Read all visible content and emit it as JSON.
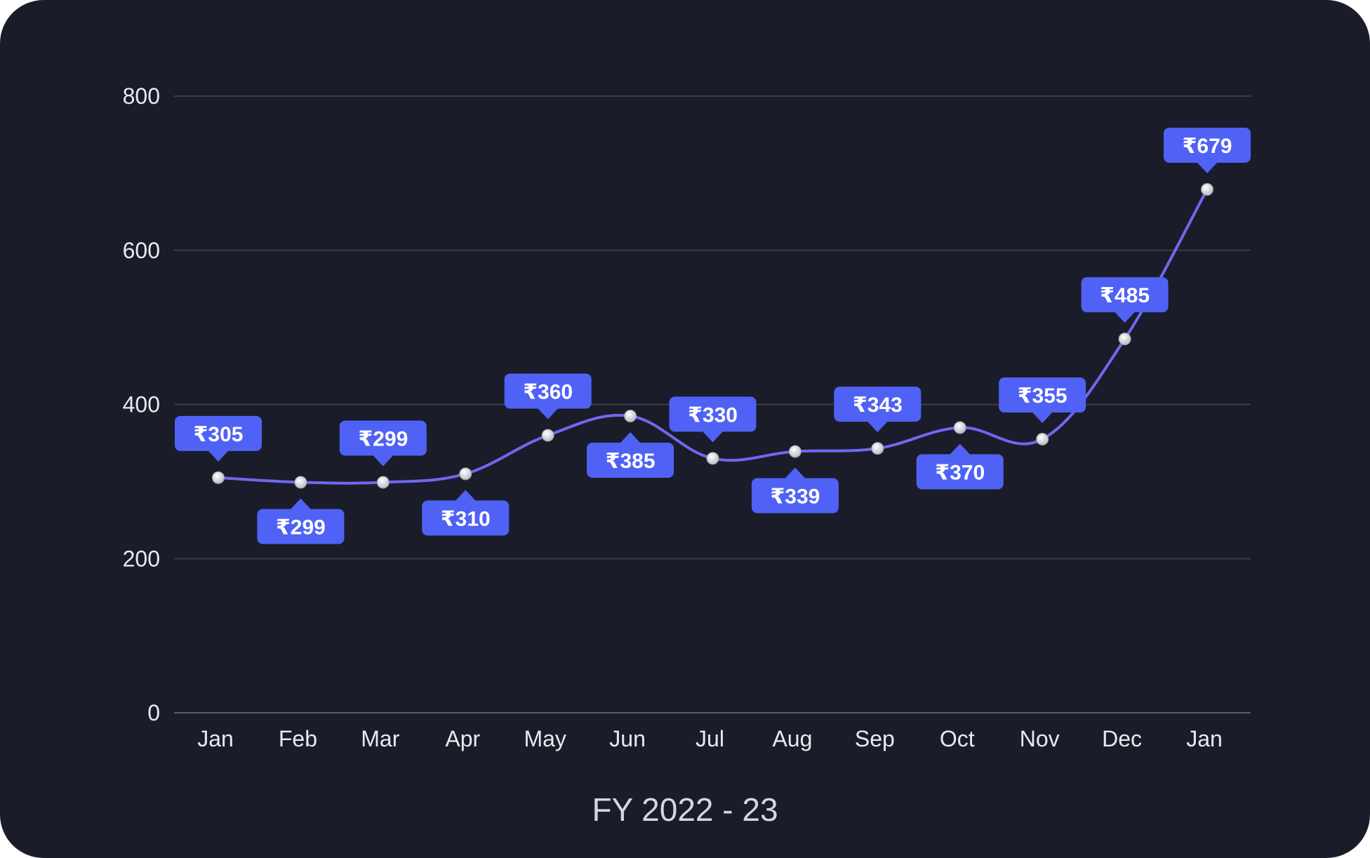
{
  "chart_data": {
    "type": "line",
    "title": "",
    "xlabel": "FY 2022 - 23",
    "ylabel": "",
    "categories": [
      "Jan",
      "Feb",
      "Mar",
      "Apr",
      "May",
      "Jun",
      "Jul",
      "Aug",
      "Sep",
      "Oct",
      "Nov",
      "Dec",
      "Jan"
    ],
    "series": [
      {
        "values": [
          305,
          299,
          299,
          310,
          360,
          385,
          330,
          339,
          343,
          370,
          355,
          485,
          679
        ],
        "data_labels": [
          "₹305",
          "₹299",
          "₹299",
          "₹310",
          "₹360",
          "₹385",
          "₹330",
          "₹339",
          "₹343",
          "₹370",
          "₹355",
          "₹485",
          "₹679"
        ],
        "label_positions": [
          "above",
          "below",
          "above",
          "below",
          "above",
          "below",
          "above",
          "below",
          "above",
          "below",
          "above",
          "above",
          "above"
        ]
      }
    ],
    "ylim": [
      0,
      800
    ],
    "yticks": [
      0,
      200,
      400,
      600,
      800
    ],
    "grid": true,
    "legend": "none",
    "colors": {
      "background": "#1a1c29",
      "line": "#6f68f0",
      "label_box": "#4f62f5",
      "grid": "#3a3c48",
      "point": "#e4e4e8"
    }
  }
}
